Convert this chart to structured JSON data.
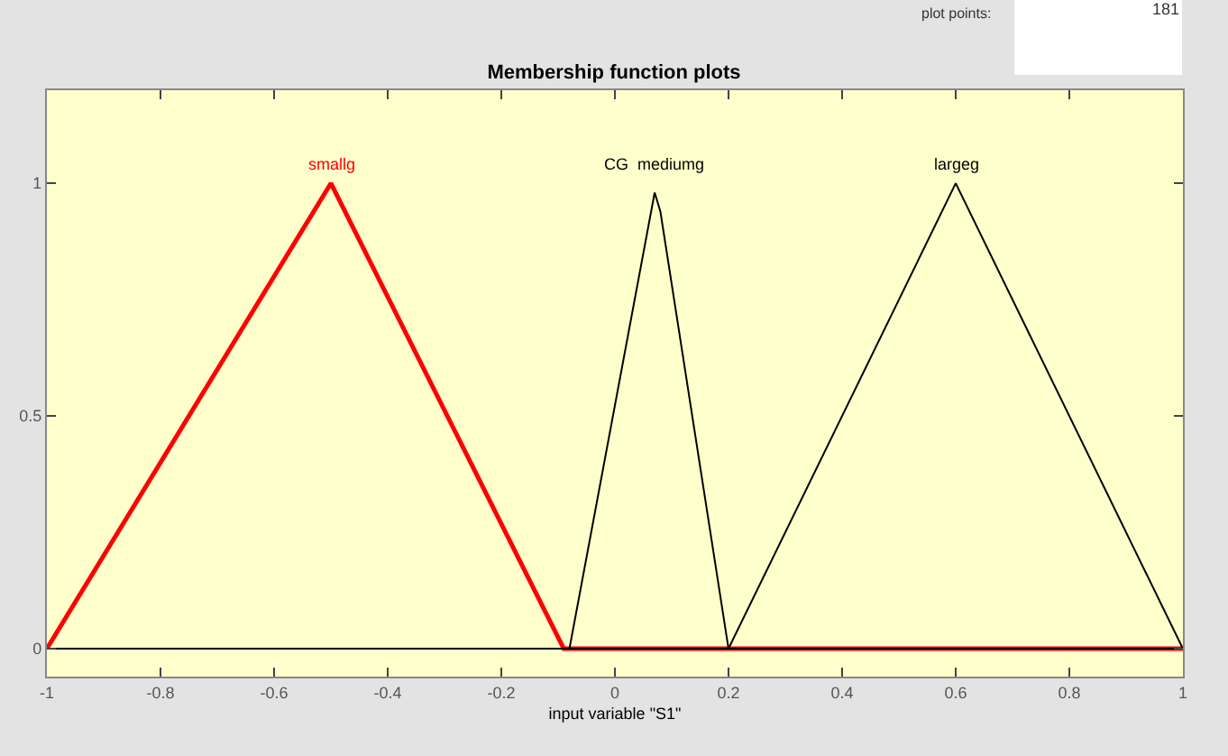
{
  "chart_data": {
    "type": "line",
    "title": "Membership function plots",
    "xlabel": "input variable \"S1\"",
    "series": [
      {
        "name": "smallg",
        "color": "#ff0000",
        "x": [
          -1,
          -0.5,
          -0.09,
          1
        ],
        "values": [
          0,
          1,
          0,
          0
        ]
      },
      {
        "name": "CG  mediumg",
        "color": "#000000",
        "x": [
          -1,
          -0.08,
          0.07,
          0.08,
          0.2,
          1
        ],
        "values": [
          0,
          0,
          0.98,
          0.94,
          0,
          0
        ]
      },
      {
        "name": "largeg",
        "color": "#000000",
        "x": [
          -1,
          0.2,
          0.6,
          1
        ],
        "values": [
          0,
          0,
          1,
          0
        ]
      }
    ],
    "xlim": [
      -1,
      1
    ],
    "xticks": [
      -1,
      -0.8,
      -0.6,
      -0.4,
      -0.2,
      0,
      0.2,
      0.4,
      0.6,
      0.8,
      1
    ],
    "ylim": [
      -0.06,
      1.2
    ],
    "yticks": [
      0,
      0.5,
      1
    ],
    "annotations": [
      "plot points:",
      "181"
    ],
    "grid": false,
    "legend": false,
    "marker": "none",
    "line_style": "solid"
  }
}
